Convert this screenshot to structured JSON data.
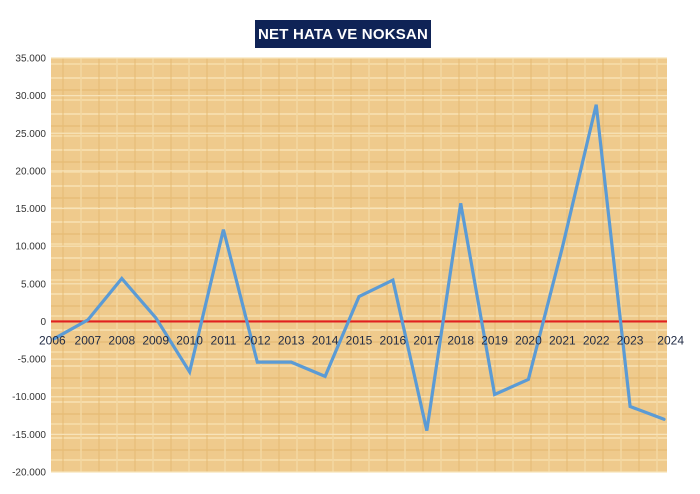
{
  "chart_data": {
    "type": "line",
    "title": "NET HATA VE NOKSAN",
    "xlabel": "",
    "ylabel": "",
    "ylim": [
      -20000,
      35000
    ],
    "yticks": [
      35000,
      30000,
      25000,
      20000,
      15000,
      10000,
      5000,
      0,
      -5000,
      -10000,
      -15000,
      -20000
    ],
    "ytick_labels": [
      "35.000",
      "30.000",
      "25.000",
      "20.000",
      "15.000",
      "10.000",
      "5.000",
      "0",
      "-5.000",
      "-10.000",
      "-15.000",
      "-20.000"
    ],
    "categories": [
      "2006",
      "2007",
      "2008",
      "2009",
      "2010",
      "2011",
      "2012",
      "2013",
      "2014",
      "2015",
      "2016",
      "2017",
      "2018",
      "2019",
      "2020",
      "2021",
      "2022",
      "2023",
      "2024"
    ],
    "series": [
      {
        "values": [
          -2300,
          200,
          5700,
          500,
          -6700,
          12200,
          -5400,
          -5400,
          -7300,
          3300,
          5500,
          -14500,
          15700,
          -9700,
          -7700,
          9800,
          28800,
          -11300,
          -13000
        ],
        "color": "#5b9bd5"
      }
    ],
    "zero_line_color": "#e02020",
    "plot_background": "#efc98a",
    "grid": true,
    "legend": "none"
  }
}
